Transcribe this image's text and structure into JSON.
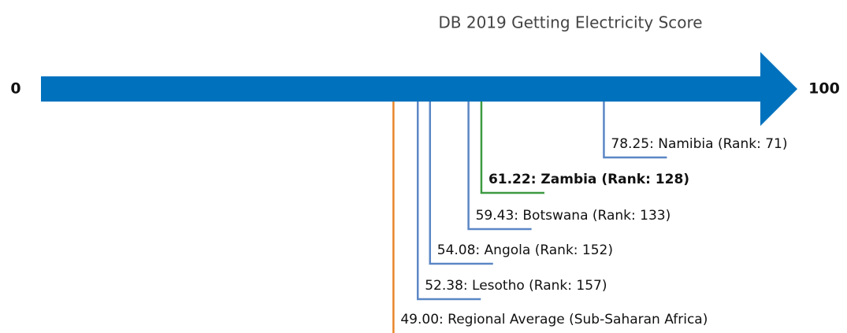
{
  "chart_data": {
    "type": "number-line",
    "title": "DB 2019 Getting Electricity Score",
    "xlim": [
      0,
      100
    ],
    "xticks": [
      0,
      100
    ],
    "axis_color": "#0072bd",
    "markers": [
      {
        "value": 78.25,
        "label": "78.25: Namibia (Rank: 71)",
        "color": "#5b87c5",
        "bold": false
      },
      {
        "value": 61.22,
        "label": "61.22: Zambia (Rank: 128)",
        "color": "#3d9a41",
        "bold": true
      },
      {
        "value": 59.43,
        "label": "59.43: Botswana (Rank: 133)",
        "color": "#5b87c5",
        "bold": false
      },
      {
        "value": 54.08,
        "label": "54.08: Angola (Rank: 152)",
        "color": "#5b87c5",
        "bold": false
      },
      {
        "value": 52.38,
        "label": "52.38: Lesotho (Rank: 157)",
        "color": "#5b87c5",
        "bold": false
      },
      {
        "value": 49,
        "label": "49.00: Regional Average (Sub-Saharan Africa)",
        "color": "#e8862a",
        "bold": false
      }
    ]
  }
}
